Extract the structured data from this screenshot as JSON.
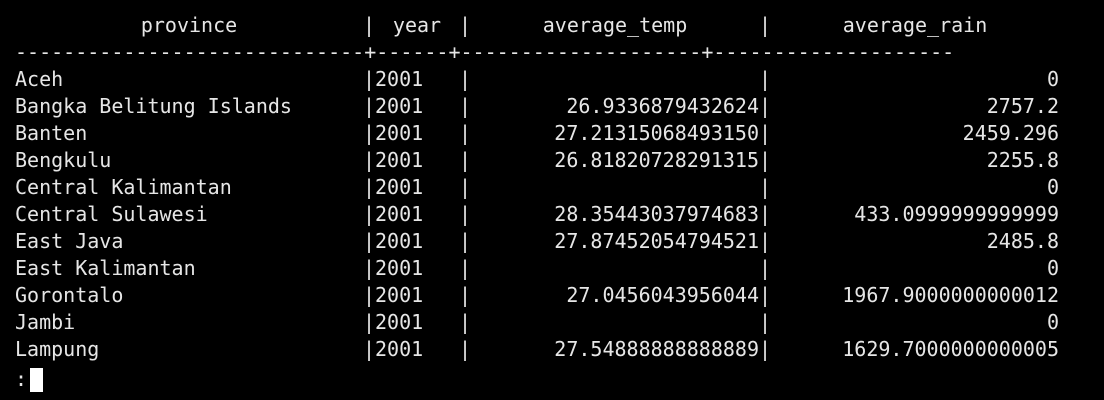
{
  "table": {
    "headers": {
      "province": "province",
      "year": "year",
      "average_temp": "average_temp",
      "average_rain": "average_rain"
    },
    "separator": "-----------------------------+------+--------------------+--------------------",
    "rows": [
      {
        "province": "Aceh",
        "year": "2001",
        "average_temp": "",
        "average_rain": "0"
      },
      {
        "province": "Bangka Belitung Islands",
        "year": "2001",
        "average_temp": "26.9336879432624",
        "average_rain": "2757.2"
      },
      {
        "province": "Banten",
        "year": "2001",
        "average_temp": "27.21315068493150",
        "average_rain": "2459.296"
      },
      {
        "province": "Bengkulu",
        "year": "2001",
        "average_temp": "26.81820728291315",
        "average_rain": "2255.8"
      },
      {
        "province": "Central Kalimantan",
        "year": "2001",
        "average_temp": "",
        "average_rain": "0"
      },
      {
        "province": "Central Sulawesi",
        "year": "2001",
        "average_temp": "28.35443037974683",
        "average_rain": "433.0999999999999"
      },
      {
        "province": "East Java",
        "year": "2001",
        "average_temp": "27.87452054794521",
        "average_rain": "2485.8"
      },
      {
        "province": "East Kalimantan",
        "year": "2001",
        "average_temp": "",
        "average_rain": "0"
      },
      {
        "province": "Gorontalo",
        "year": "2001",
        "average_temp": "27.0456043956044",
        "average_rain": "1967.9000000000012"
      },
      {
        "province": "Jambi",
        "year": "2001",
        "average_temp": "",
        "average_rain": "0"
      },
      {
        "province": "Lampung",
        "year": "2001",
        "average_temp": "27.54888888888889",
        "average_rain": "1629.7000000000005"
      }
    ]
  },
  "pager": {
    "prompt": ":"
  }
}
